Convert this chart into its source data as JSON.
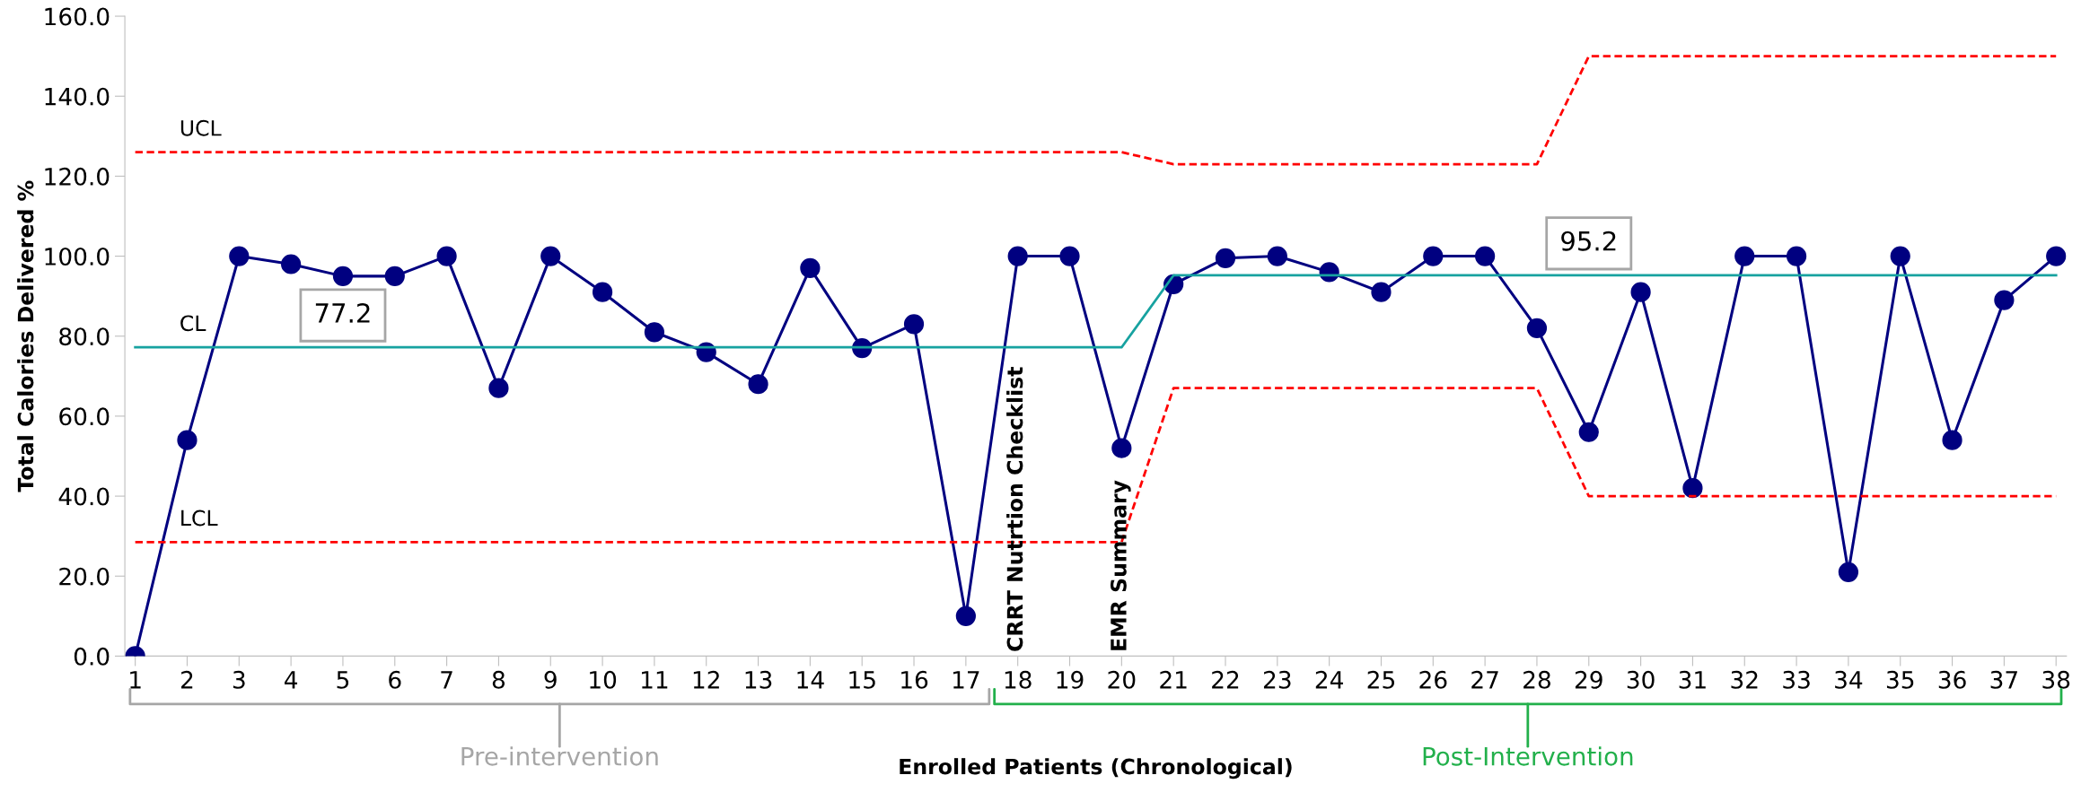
{
  "chart_data": {
    "type": "line",
    "xlabel": "Enrolled Patients (Chronological)",
    "ylabel": "Total Calories Delivered %",
    "categories": [
      "1",
      "2",
      "3",
      "4",
      "5",
      "6",
      "7",
      "8",
      "9",
      "10",
      "11",
      "12",
      "13",
      "14",
      "15",
      "16",
      "17",
      "18",
      "19",
      "20",
      "21",
      "22",
      "23",
      "24",
      "25",
      "26",
      "27",
      "28",
      "29",
      "30",
      "31",
      "32",
      "33",
      "34",
      "35",
      "36",
      "37",
      "38"
    ],
    "series": [
      {
        "name": "UCL",
        "color": "#ff0000",
        "line_style": "dashed",
        "marker": "none",
        "values": [
          126,
          126,
          126,
          126,
          126,
          126,
          126,
          126,
          126,
          126,
          126,
          126,
          126,
          126,
          126,
          126,
          126,
          126,
          126,
          126,
          123,
          123,
          123,
          123,
          123,
          123,
          123,
          123,
          150,
          150,
          150,
          150,
          150,
          150,
          150,
          150,
          150,
          150
        ]
      },
      {
        "name": "CL",
        "color": "#17a2a0",
        "line_style": "solid",
        "marker": "none",
        "values": [
          77.2,
          77.2,
          77.2,
          77.2,
          77.2,
          77.2,
          77.2,
          77.2,
          77.2,
          77.2,
          77.2,
          77.2,
          77.2,
          77.2,
          77.2,
          77.2,
          77.2,
          77.2,
          77.2,
          77.2,
          95.2,
          95.2,
          95.2,
          95.2,
          95.2,
          95.2,
          95.2,
          95.2,
          95.2,
          95.2,
          95.2,
          95.2,
          95.2,
          95.2,
          95.2,
          95.2,
          95.2,
          95.2
        ]
      },
      {
        "name": "LCL",
        "color": "#ff0000",
        "line_style": "dashed",
        "marker": "none",
        "values": [
          28.5,
          28.5,
          28.5,
          28.5,
          28.5,
          28.5,
          28.5,
          28.5,
          28.5,
          28.5,
          28.5,
          28.5,
          28.5,
          28.5,
          28.5,
          28.5,
          28.5,
          28.5,
          28.5,
          28.5,
          67,
          67,
          67,
          67,
          67,
          67,
          67,
          67,
          40,
          40,
          40,
          40,
          40,
          40,
          40,
          40,
          40,
          40
        ]
      },
      {
        "color": "#000080",
        "line_style": "solid",
        "marker": "circle",
        "values": [
          0,
          54,
          100,
          98,
          95,
          95,
          100,
          67,
          100,
          91,
          81,
          76,
          68,
          97,
          77,
          83,
          10,
          100,
          100,
          52,
          93,
          99.5,
          100,
          96,
          91,
          100,
          100,
          82,
          56,
          91,
          42,
          100,
          100,
          21,
          100,
          54,
          89,
          100
        ]
      }
    ],
    "ylim": [
      0,
      160
    ],
    "yticks": [
      {
        "value": 0,
        "label": "0.0"
      },
      {
        "value": 20,
        "label": "20.0"
      },
      {
        "value": 40,
        "label": "40.0"
      },
      {
        "value": 60,
        "label": "60.0"
      },
      {
        "value": 80,
        "label": "80.0"
      },
      {
        "value": 100,
        "label": "100.0"
      },
      {
        "value": 120,
        "label": "120.0"
      },
      {
        "value": 140,
        "label": "140.0"
      },
      {
        "value": 160,
        "label": "160.0"
      }
    ],
    "grid": false,
    "legend": false,
    "annotations": [
      {
        "text": "77.2",
        "x": "5",
        "y": 77.2
      },
      {
        "text": "95.2",
        "x": "29",
        "y": 95.2
      },
      "CRRT Nutrtion Checklist",
      "EMR Summary",
      "Pre-intervention",
      "Post-Intervention"
    ]
  }
}
